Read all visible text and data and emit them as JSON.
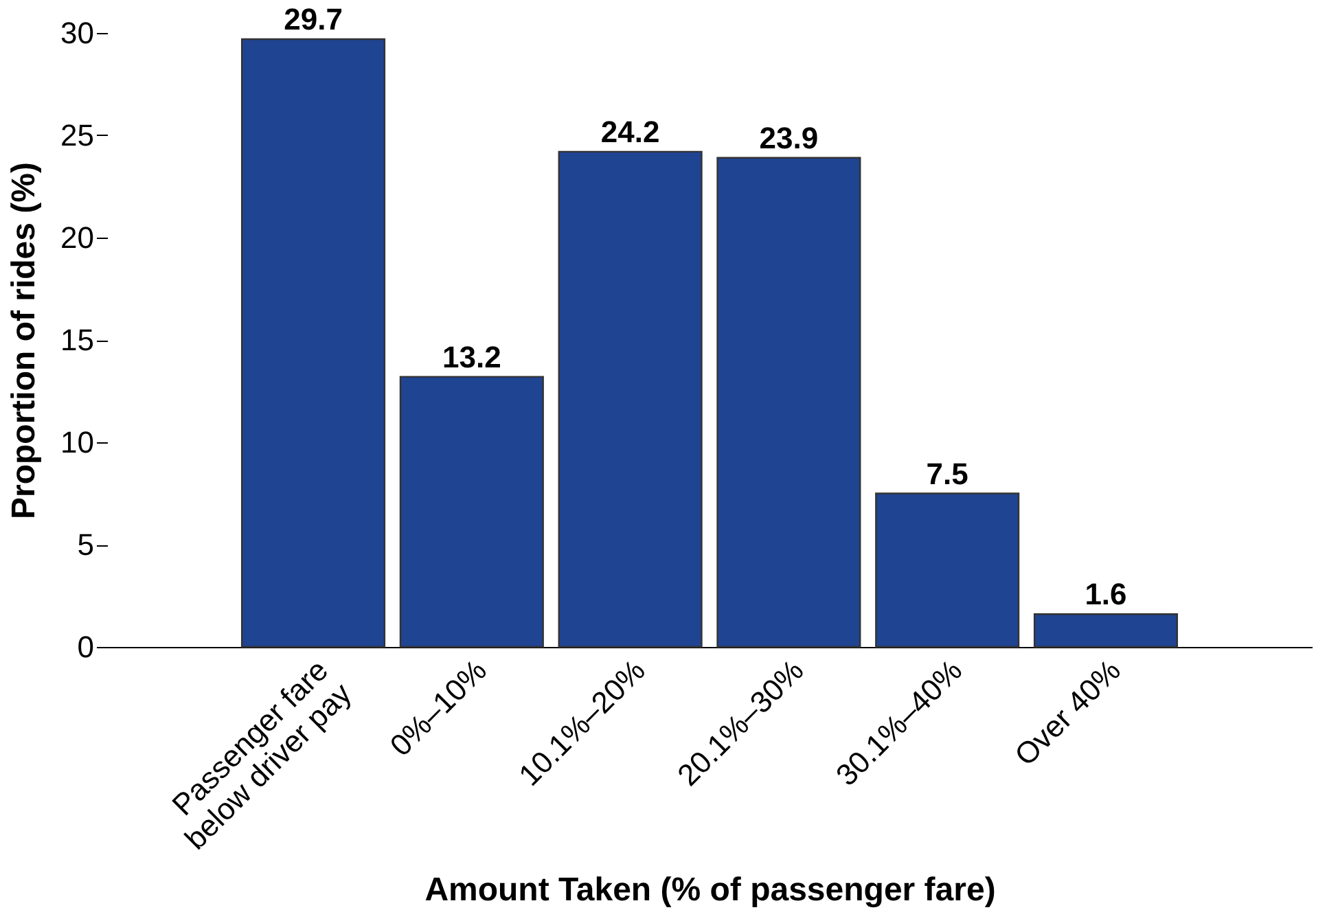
{
  "chart_data": {
    "type": "bar",
    "xlabel": "Amount Taken (% of passenger fare)",
    "ylabel": "Proportion of rides (%)",
    "categories": [
      "Passenger fare\nbelow driver pay",
      "0%–10%",
      "10.1%–20%",
      "20.1%–30%",
      "30.1%–40%",
      "Over 40%"
    ],
    "values": [
      29.7,
      13.2,
      24.2,
      23.9,
      7.5,
      1.6
    ],
    "color": "#1f4492",
    "ylim": [
      0,
      30
    ],
    "yticks": [
      0,
      5,
      10,
      15,
      20,
      25,
      30
    ],
    "data_labels": true,
    "grid": false
  }
}
